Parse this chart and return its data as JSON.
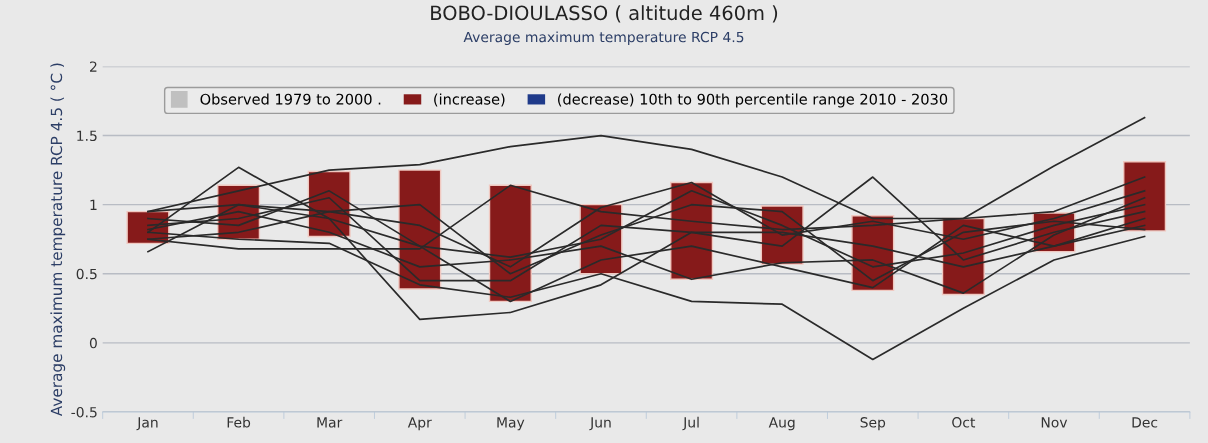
{
  "chart_data": {
    "type": "bar",
    "title": "BOBO-DIOULASSO ( altitude 460m )",
    "subtitle": "Average maximum temperature RCP 4.5",
    "ylabel": "Average maximum temperature RCP 4.5 ( °C )",
    "categories": [
      "Jan",
      "Feb",
      "Mar",
      "Apr",
      "May",
      "Jun",
      "Jul",
      "Aug",
      "Sep",
      "Oct",
      "Nov",
      "Dec"
    ],
    "ylim": [
      -0.5,
      2
    ],
    "yticks": [
      -0.5,
      0,
      0.5,
      1,
      1.5,
      2
    ],
    "grid": "y",
    "legend": "top",
    "series": [
      {
        "name": "Observed 1979 to 2000 .",
        "type": "line",
        "color": "#c0c0c0",
        "values": [
          null,
          null,
          null,
          null,
          null,
          null,
          null,
          null,
          null,
          null,
          null,
          null
        ]
      },
      {
        "name": "(increase)",
        "color": "#861a1a",
        "base": [
          0.72,
          0.75,
          0.77,
          0.39,
          0.3,
          0.5,
          0.46,
          0.57,
          0.38,
          0.35,
          0.66,
          0.81
        ],
        "values": [
          0.23,
          0.39,
          0.47,
          0.86,
          0.84,
          0.5,
          0.7,
          0.42,
          0.54,
          0.55,
          0.28,
          0.5
        ]
      },
      {
        "name": "(decrease) 10th to 90th percentile range 2010 - 2030",
        "type": "bar",
        "color": "#1f3a8a",
        "values": [
          null,
          null,
          null,
          null,
          null,
          null,
          null,
          null,
          null,
          null,
          null,
          null
        ]
      },
      {
        "type": "line",
        "color": "#2a2a2a",
        "values": [
          0.95,
          1.1,
          1.25,
          1.29,
          1.42,
          1.5,
          1.4,
          1.2,
          0.9,
          0.9,
          1.28,
          1.63
        ]
      },
      {
        "type": "line",
        "color": "#2a2a2a",
        "values": [
          0.8,
          0.75,
          0.72,
          0.42,
          0.33,
          0.5,
          0.3,
          0.28,
          -0.12,
          0.25,
          0.6,
          0.77
        ]
      },
      {
        "type": "line",
        "color": "#2a2a2a",
        "values": [
          0.66,
          1.0,
          0.9,
          0.17,
          0.22,
          0.42,
          0.8,
          0.8,
          0.7,
          0.55,
          0.7,
          0.85
        ]
      },
      {
        "type": "line",
        "color": "#2a2a2a",
        "values": [
          0.8,
          1.27,
          0.9,
          0.7,
          0.62,
          0.75,
          1.1,
          0.85,
          0.55,
          0.65,
          0.85,
          1.0
        ]
      },
      {
        "type": "line",
        "color": "#2a2a2a",
        "values": [
          0.85,
          0.9,
          1.05,
          0.45,
          0.45,
          0.85,
          0.8,
          0.7,
          1.2,
          0.6,
          0.8,
          0.95
        ]
      },
      {
        "type": "line",
        "color": "#2a2a2a",
        "values": [
          0.75,
          0.68,
          0.68,
          0.68,
          1.14,
          0.95,
          0.88,
          0.82,
          0.85,
          0.9,
          0.95,
          1.2
        ]
      },
      {
        "type": "line",
        "color": "#2a2a2a",
        "values": [
          0.95,
          1.0,
          0.95,
          0.85,
          0.55,
          0.98,
          1.16,
          0.78,
          0.88,
          0.75,
          0.9,
          1.1
        ]
      },
      {
        "type": "line",
        "color": "#2a2a2a",
        "values": [
          0.9,
          0.85,
          1.1,
          0.7,
          0.3,
          0.6,
          0.7,
          0.55,
          0.4,
          0.85,
          0.7,
          0.9
        ]
      },
      {
        "type": "line",
        "color": "#2a2a2a",
        "values": [
          0.82,
          0.95,
          0.8,
          0.55,
          0.6,
          0.7,
          0.46,
          0.58,
          0.6,
          0.36,
          0.78,
          1.05
        ]
      },
      {
        "type": "line",
        "color": "#2a2a2a",
        "values": [
          0.75,
          0.8,
          0.95,
          1.0,
          0.5,
          0.78,
          1.0,
          0.95,
          0.45,
          0.8,
          0.88,
          0.82
        ]
      }
    ]
  }
}
